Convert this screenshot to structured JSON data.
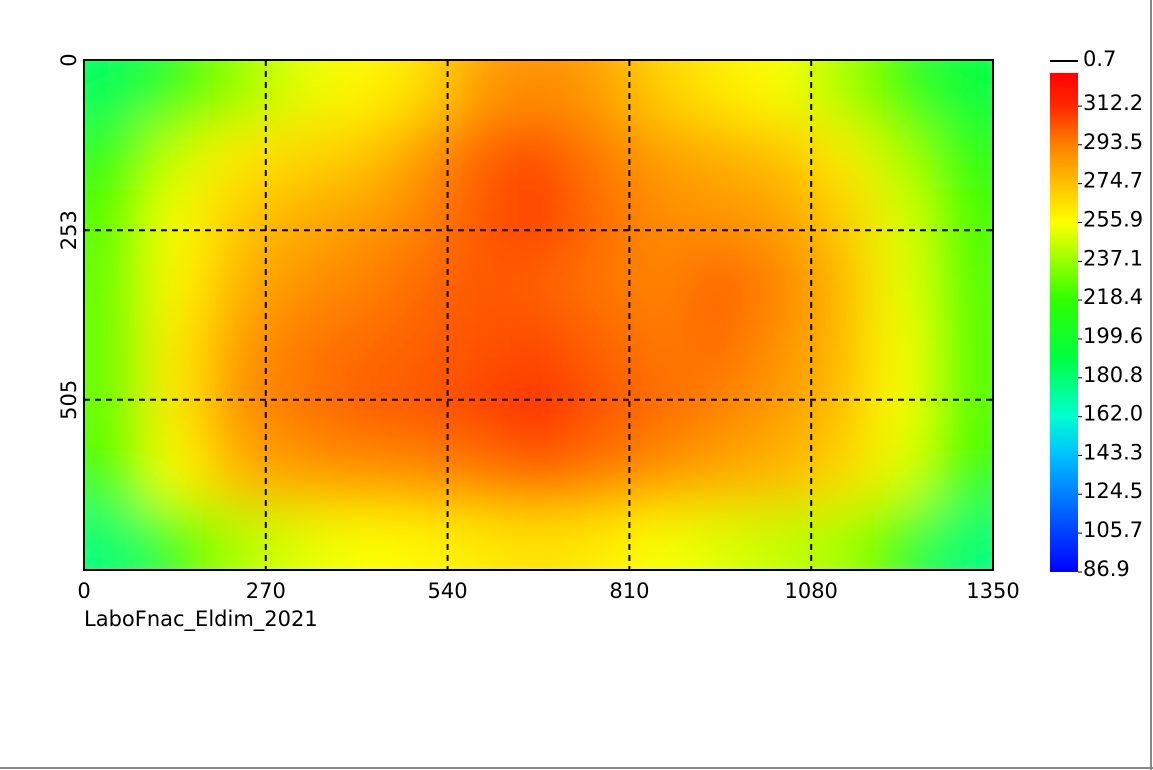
{
  "chart_data": {
    "type": "heatmap",
    "caption": "LaboFnac_Eldim_2021",
    "xlim": [
      0,
      1350
    ],
    "xticks": [
      0,
      270,
      540,
      810,
      1080,
      1350
    ],
    "ylim": [
      0,
      758
    ],
    "yticks": [
      0,
      253,
      505
    ],
    "y_inverted": true,
    "grid": true,
    "clim": [
      86.9,
      328.2
    ],
    "colorbar_top_label": 0.7,
    "colorbar_ticks": [
      {
        "value": 86.9,
        "label": "86.9"
      },
      {
        "value": 105.7,
        "label": "105.7"
      },
      {
        "value": 124.5,
        "label": "124.5"
      },
      {
        "value": 143.3,
        "label": "143.3"
      },
      {
        "value": 162,
        "label": "162.0"
      },
      {
        "value": 180.8,
        "label": "180.8"
      },
      {
        "value": 199.6,
        "label": "199.6"
      },
      {
        "value": 218.4,
        "label": "218.4"
      },
      {
        "value": 237.1,
        "label": "237.1"
      },
      {
        "value": 255.9,
        "label": "255.9"
      },
      {
        "value": 274.7,
        "label": "274.7"
      },
      {
        "value": 293.5,
        "label": "293.5"
      },
      {
        "value": 312.2,
        "label": "312.2"
      }
    ],
    "colormap": [
      [
        86.9,
        "#0000ff"
      ],
      [
        143.3,
        "#00c0ff"
      ],
      [
        162,
        "#00ffd0"
      ],
      [
        190,
        "#00ff40"
      ],
      [
        218.4,
        "#30ff00"
      ],
      [
        255.9,
        "#ffff00"
      ],
      [
        274.7,
        "#ffc000"
      ],
      [
        293.5,
        "#ff8000"
      ],
      [
        312.2,
        "#ff2800"
      ],
      [
        328.2,
        "#ff0000"
      ]
    ],
    "z": [
      [
        185,
        215,
        235,
        250,
        258,
        265,
        285,
        290,
        285,
        270,
        262,
        255,
        240,
        220,
        190
      ],
      [
        215,
        245,
        262,
        268,
        272,
        285,
        300,
        305,
        295,
        285,
        280,
        275,
        262,
        240,
        215
      ],
      [
        225,
        255,
        272,
        280,
        285,
        292,
        302,
        308,
        298,
        290,
        288,
        285,
        272,
        250,
        222
      ],
      [
        228,
        258,
        278,
        288,
        292,
        298,
        302,
        300,
        296,
        292,
        300,
        292,
        278,
        252,
        225
      ],
      [
        228,
        262,
        285,
        295,
        298,
        300,
        303,
        305,
        300,
        295,
        298,
        288,
        278,
        255,
        225
      ],
      [
        228,
        262,
        288,
        295,
        300,
        302,
        306,
        312,
        303,
        298,
        292,
        285,
        275,
        255,
        225
      ],
      [
        222,
        255,
        278,
        285,
        288,
        290,
        295,
        300,
        295,
        288,
        282,
        278,
        268,
        250,
        220
      ],
      [
        180,
        220,
        240,
        250,
        255,
        258,
        262,
        265,
        262,
        255,
        250,
        245,
        240,
        220,
        180
      ]
    ]
  }
}
